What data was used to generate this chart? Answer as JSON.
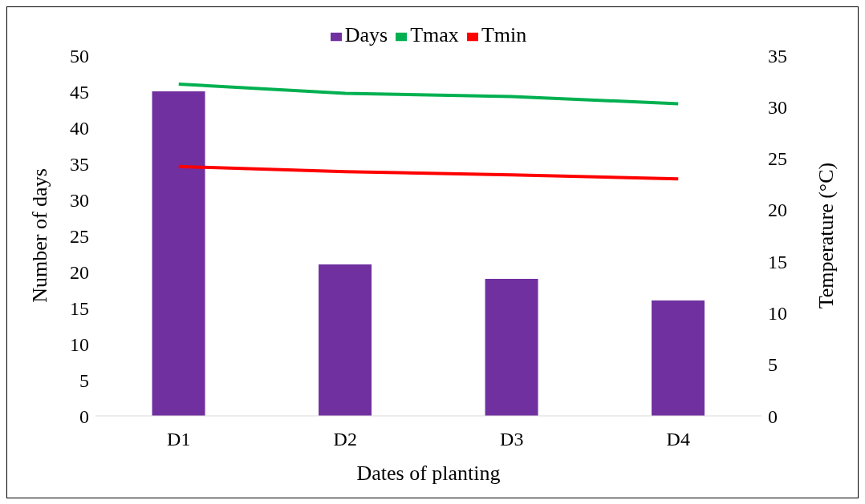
{
  "chart_data": {
    "type": "bar",
    "xlabel": "Dates of planting",
    "ylabel": "Number of days",
    "y2label": "Temperature (°C)",
    "categories": [
      "D1",
      "D2",
      "D3",
      "D4"
    ],
    "series": [
      {
        "name": "Days",
        "color": "#7030a0",
        "values": [
          45,
          21,
          19,
          16
        ]
      },
      {
        "name": "Tmax",
        "type": "line",
        "axis": "y2",
        "color": "#00b050",
        "values": [
          32.2,
          31.3,
          31.0,
          30.3
        ]
      },
      {
        "name": "Tmin",
        "type": "line",
        "axis": "y2",
        "color": "#ff0000",
        "values": [
          24.2,
          23.7,
          23.4,
          23.0
        ]
      }
    ],
    "ylim": [
      0,
      50
    ],
    "yticks": [
      0,
      5,
      10,
      15,
      20,
      25,
      30,
      35,
      40,
      45,
      50
    ],
    "y2lim": [
      0,
      35
    ],
    "y2ticks": [
      0,
      5,
      10,
      15,
      20,
      25,
      30,
      35
    ],
    "legend": "top",
    "marker": "none"
  }
}
